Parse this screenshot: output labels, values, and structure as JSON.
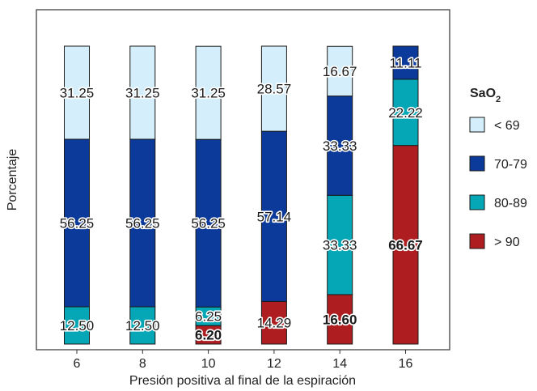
{
  "chart_data": {
    "type": "bar",
    "stacked": true,
    "xlabel": "Presión positiva al final de la espiración",
    "ylabel": "Porcentaje",
    "ylim": [
      0,
      100
    ],
    "grid": false,
    "categories": [
      "6",
      "8",
      "10",
      "12",
      "14",
      "16"
    ],
    "series": [
      {
        "name": "> 90",
        "color": "#ae1d1f",
        "values": [
          0,
          0,
          6.2,
          14.29,
          16.6,
          66.67
        ],
        "labels": [
          "",
          "",
          "6.20",
          "14.29",
          "16.60",
          "66.67"
        ],
        "bold": [
          false,
          false,
          true,
          false,
          true,
          true
        ]
      },
      {
        "name": "80-89",
        "color": "#05a7b6",
        "values": [
          12.5,
          12.5,
          6.25,
          0,
          33.33,
          22.22
        ],
        "labels": [
          "12.50",
          "12.50",
          "6.25",
          "",
          "33.33",
          "22.22"
        ],
        "bold": [
          false,
          false,
          false,
          false,
          false,
          false
        ]
      },
      {
        "name": "70-79",
        "color": "#0b3a9b",
        "values": [
          56.25,
          56.25,
          56.25,
          57.14,
          33.33,
          11.11
        ],
        "labels": [
          "56.25",
          "56.25",
          "56.25",
          "57.14",
          "33.33",
          "11.11"
        ],
        "bold": [
          false,
          false,
          false,
          false,
          false,
          false
        ]
      },
      {
        "name": "< 69",
        "color": "#d4effb",
        "values": [
          31.25,
          31.25,
          31.25,
          28.57,
          16.67,
          0
        ],
        "labels": [
          "31.25",
          "31.25",
          "31.25",
          "28.57",
          "16.67",
          ""
        ],
        "bold": [
          false,
          false,
          false,
          false,
          false,
          false
        ]
      }
    ],
    "legend": {
      "placement": "right",
      "title_main": "SaO",
      "title_sub": "2",
      "order": [
        "< 69",
        "70-79",
        "80-89",
        "> 90"
      ]
    }
  }
}
